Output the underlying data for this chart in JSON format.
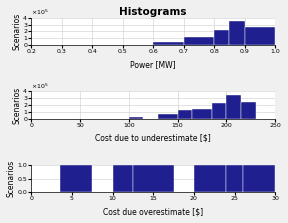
{
  "title": "Histograms",
  "bar_color": "#1f1f8f",
  "fig_facecolor": "#f0f0f0",
  "subplot1": {
    "xlabel": "Power [MW]",
    "ylabel": "Scenarios",
    "xlim": [
      0.2,
      1.0
    ],
    "ylim": [
      0,
      400000.0
    ],
    "ytick_vals": [
      0,
      1,
      2,
      3,
      4
    ],
    "xticks": [
      0.2,
      0.3,
      0.4,
      0.5,
      0.6,
      0.7,
      0.8,
      0.9,
      1.0
    ],
    "bin_edges": [
      0.2,
      0.3,
      0.4,
      0.5,
      0.55,
      0.6,
      0.7,
      0.8,
      0.85,
      0.9,
      1.0
    ],
    "bin_heights": [
      0,
      0,
      0,
      0,
      5000,
      50000,
      115000,
      215000,
      345000,
      265000
    ]
  },
  "subplot2": {
    "xlabel": "Cost due to underestimate [$]",
    "ylabel": "Scenarios",
    "xlim": [
      0,
      250
    ],
    "ylim": [
      0,
      400000.0
    ],
    "ytick_vals": [
      0,
      1,
      2,
      3,
      4
    ],
    "xticks": [
      0,
      50,
      100,
      150,
      200,
      250
    ],
    "bin_edges": [
      0,
      50,
      100,
      115,
      130,
      150,
      165,
      185,
      200,
      215,
      230,
      250
    ],
    "bin_heights": [
      0,
      0,
      30000,
      0,
      65000,
      130000,
      145000,
      225000,
      345000,
      240000,
      0
    ]
  },
  "subplot3": {
    "xlabel": "Cost due overestimate [$]",
    "ylabel": "Scenarios",
    "xlim": [
      0,
      30
    ],
    "ylim": [
      0,
      1.0
    ],
    "yticks": [
      0,
      0.5,
      1
    ],
    "xticks": [
      0,
      5,
      10,
      15,
      20,
      25,
      30
    ],
    "bin_edges": [
      0,
      3.5,
      7.5,
      10,
      12.5,
      17.5,
      20,
      24,
      26,
      30
    ],
    "bin_heights": [
      0,
      1,
      0,
      1,
      1,
      0,
      1,
      1,
      1
    ]
  }
}
